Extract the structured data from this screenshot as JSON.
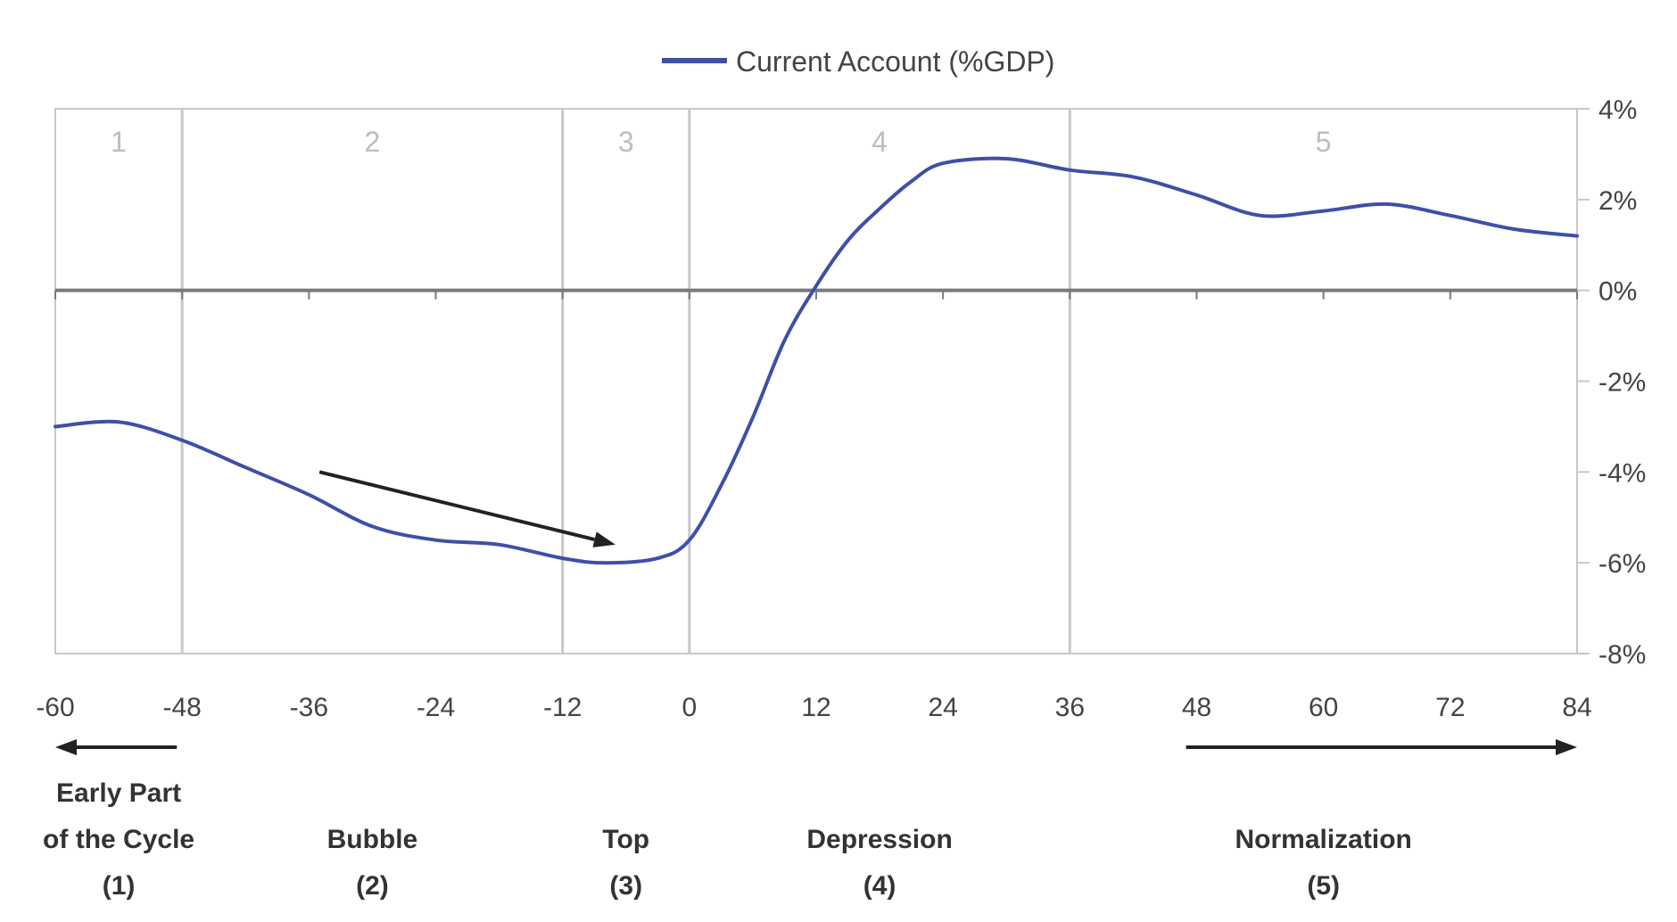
{
  "chart_data": {
    "type": "line",
    "title": "",
    "xlabel": "",
    "ylabel": "",
    "xlim": [
      -60,
      84
    ],
    "ylim": [
      -8,
      4
    ],
    "x_ticks": [
      -60,
      -48,
      -36,
      -24,
      -12,
      0,
      12,
      24,
      36,
      48,
      60,
      72,
      84
    ],
    "x_tick_labels": [
      "-60",
      "-48",
      "-36",
      "-24",
      "-12",
      "0",
      "12",
      "24",
      "36",
      "48",
      "60",
      "72",
      "84"
    ],
    "y_ticks": [
      4,
      2,
      0,
      -2,
      -4,
      -6,
      -8
    ],
    "y_tick_labels": [
      "4%",
      "2%",
      "0%",
      "-2%",
      "-4%",
      "-6%",
      "-8%"
    ],
    "legend": {
      "position": "top-center",
      "entries": [
        "Current Account (%GDP)"
      ]
    },
    "series": [
      {
        "name": "Current Account (%GDP)",
        "color": "#3f4fa8",
        "x": [
          -60,
          -54,
          -48,
          -42,
          -36,
          -30,
          -24,
          -18,
          -12,
          -8,
          -3,
          0,
          3,
          6,
          9,
          12,
          15,
          18,
          21,
          24,
          30,
          36,
          42,
          48,
          54,
          60,
          66,
          72,
          78,
          84
        ],
        "y": [
          -3.0,
          -2.9,
          -3.3,
          -3.9,
          -4.5,
          -5.2,
          -5.5,
          -5.6,
          -5.9,
          -6.0,
          -5.9,
          -5.5,
          -4.3,
          -2.8,
          -1.1,
          0.1,
          1.1,
          1.8,
          2.4,
          2.8,
          2.9,
          2.65,
          2.5,
          2.1,
          1.65,
          1.75,
          1.9,
          1.65,
          1.35,
          1.2
        ]
      }
    ],
    "phase_boundaries": [
      -48,
      -12,
      0,
      36
    ],
    "phases": [
      {
        "number": "1",
        "x": -54,
        "label": [
          "Early Part",
          "of the Cycle",
          "(1)"
        ]
      },
      {
        "number": "2",
        "x": -30,
        "label": [
          "Bubble",
          "(2)"
        ]
      },
      {
        "number": "3",
        "x": -6,
        "label": [
          "Top",
          "(3)"
        ]
      },
      {
        "number": "4",
        "x": 18,
        "label": [
          "Depression",
          "(4)"
        ]
      },
      {
        "number": "5",
        "x": 60,
        "label": [
          "Normalization",
          "(5)"
        ]
      }
    ],
    "annotations": [
      {
        "type": "arrow",
        "from": [
          -35,
          -4.0
        ],
        "to": [
          -7,
          -5.6
        ]
      },
      {
        "type": "arrow",
        "from": [
          -48.5,
          null
        ],
        "to": [
          -60,
          null
        ],
        "placement": "below-axis"
      },
      {
        "type": "arrow",
        "from": [
          47,
          null
        ],
        "to": [
          84,
          null
        ],
        "placement": "below-axis"
      }
    ]
  },
  "colors": {
    "line": "#3f4fa8",
    "grid": "#c8c8c8",
    "zero_line": "#7a7a7a",
    "arrow": "#222222"
  }
}
